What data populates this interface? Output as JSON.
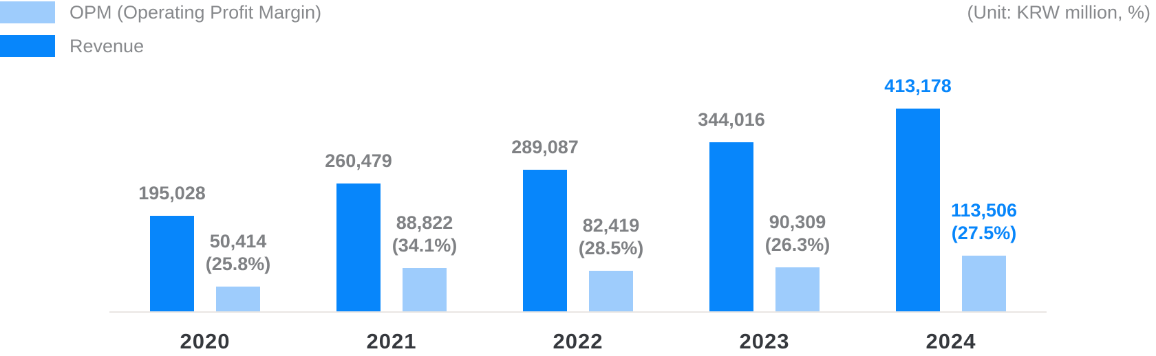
{
  "legend": {
    "items": [
      {
        "label": "OPM (Operating Profit Margin)",
        "color": "#9ECCFC"
      },
      {
        "label": "Revenue",
        "color": "#0786FB"
      }
    ]
  },
  "unit_note": "(Unit: KRW million, %)",
  "colors": {
    "revenue": "#0786FB",
    "opm": "#9ECCFC",
    "label_gray": "#7F8184",
    "legend_gray": "#87898C",
    "year_gray": "#35383D",
    "highlight_blue": "#0786FB",
    "axis_line": "#E9E6E3"
  },
  "chart_data": {
    "type": "bar",
    "title": "",
    "unit": "KRW million, %",
    "categories": [
      "2020",
      "2021",
      "2022",
      "2023",
      "2024"
    ],
    "series": [
      {
        "name": "Revenue",
        "values": [
          195028,
          260479,
          289087,
          344016,
          413178
        ],
        "labels": [
          "195,028",
          "260,479",
          "289,087",
          "344,016",
          "413,178"
        ]
      },
      {
        "name": "OPM (Operating Profit Margin)",
        "values": [
          50414,
          88822,
          82419,
          90309,
          113506
        ],
        "labels": [
          "50,414",
          "88,822",
          "82,419",
          "90,309",
          "113,506"
        ],
        "pct_values": [
          25.8,
          34.1,
          28.5,
          26.3,
          27.5
        ],
        "pct_labels": [
          "(25.8%)",
          "(34.1%)",
          "(28.5%)",
          "(26.3%)",
          "(27.5%)"
        ]
      }
    ],
    "ylim": [
      0,
      413178
    ],
    "grid": false,
    "legend_position": "top-left",
    "highlight_category": "2024",
    "x_axis_visible": true,
    "y_axis_visible": false
  }
}
